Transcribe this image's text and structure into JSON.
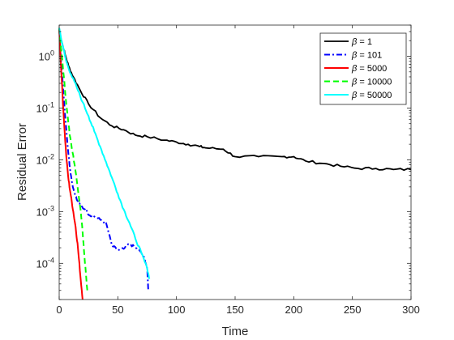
{
  "chart_data": {
    "type": "line",
    "title": "",
    "xlabel": "Time",
    "ylabel": "Residual Error",
    "xlim": [
      0,
      300
    ],
    "ylim": [
      2e-05,
      4
    ],
    "yscale": "log",
    "grid": false,
    "legend_position": "top-right",
    "x_ticks": [
      0,
      50,
      100,
      150,
      200,
      250,
      300
    ],
    "x_tick_labels": [
      "0",
      "50",
      "100",
      "150",
      "200",
      "250",
      "300"
    ],
    "y_ticks": [
      0.0001,
      0.001,
      0.01,
      0.1,
      1
    ],
    "y_tick_labels": [
      {
        "base": "10",
        "exp": "-4"
      },
      {
        "base": "10",
        "exp": "-3"
      },
      {
        "base": "10",
        "exp": "-2"
      },
      {
        "base": "10",
        "exp": "-1"
      },
      {
        "base": "10",
        "exp": "0"
      }
    ],
    "series": [
      {
        "name": "β = 1",
        "label_symbol": "β",
        "label_value": " = 1",
        "color": "#000000",
        "dash": "solid",
        "x": [
          0,
          2,
          5,
          8,
          12,
          18,
          25,
          35,
          45,
          55,
          65,
          75,
          90,
          100,
          110,
          120,
          125,
          140,
          150,
          170,
          190,
          200,
          210,
          225,
          240,
          255,
          270,
          285,
          300
        ],
        "y": [
          3.5,
          2.0,
          1.1,
          0.65,
          0.4,
          0.22,
          0.12,
          0.065,
          0.045,
          0.038,
          0.03,
          0.028,
          0.024,
          0.022,
          0.02,
          0.018,
          0.017,
          0.016,
          0.0115,
          0.0115,
          0.0115,
          0.0115,
          0.0095,
          0.0085,
          0.0075,
          0.0068,
          0.0068,
          0.0065,
          0.0065
        ]
      },
      {
        "name": "β = 101",
        "label_symbol": "β",
        "label_value": " = 101",
        "color": "#0000ff",
        "dash": "dashdot",
        "x": [
          0,
          2,
          4,
          6,
          8,
          10,
          12,
          15,
          18,
          22,
          26,
          30,
          35,
          40,
          45,
          50,
          55,
          60,
          65,
          70,
          73,
          75,
          76
        ],
        "y": [
          3.5,
          0.6,
          0.15,
          0.04,
          0.012,
          0.005,
          0.0028,
          0.0017,
          0.0013,
          0.0011,
          0.00085,
          0.0008,
          0.0007,
          0.0006,
          0.00022,
          0.00018,
          0.00019,
          0.00024,
          0.0002,
          0.00016,
          0.00012,
          8e-05,
          3e-05
        ]
      },
      {
        "name": "β = 5000",
        "label_symbol": "β",
        "label_value": " = 5000",
        "color": "#ff0000",
        "dash": "solid",
        "x": [
          0,
          2,
          4,
          6,
          8,
          10,
          12,
          14,
          16,
          18,
          20
        ],
        "y": [
          3.5,
          0.4,
          0.06,
          0.012,
          0.004,
          0.002,
          0.001,
          0.0005,
          0.0002,
          6e-05,
          2e-05
        ]
      },
      {
        "name": "β = 10000",
        "label_symbol": "β",
        "label_value": " = 10000",
        "color": "#00ff00",
        "dash": "dashed",
        "x": [
          0,
          2,
          4,
          6,
          9,
          12,
          15,
          18,
          20,
          22,
          24
        ],
        "y": [
          3.5,
          1.2,
          0.4,
          0.12,
          0.03,
          0.012,
          0.004,
          0.0012,
          0.0004,
          0.0001,
          3e-05
        ]
      },
      {
        "name": "β = 50000",
        "label_symbol": "β",
        "label_value": " = 50000",
        "color": "#00ffff",
        "dash": "solid",
        "x": [
          0,
          3,
          6,
          10,
          15,
          20,
          25,
          30,
          35,
          40,
          45,
          50,
          55,
          60,
          65,
          70,
          75,
          77
        ],
        "y": [
          3.5,
          1.6,
          0.8,
          0.45,
          0.25,
          0.13,
          0.07,
          0.035,
          0.018,
          0.009,
          0.0045,
          0.0022,
          0.0011,
          0.0006,
          0.0003,
          0.00016,
          8e-05,
          5e-05
        ]
      }
    ]
  }
}
